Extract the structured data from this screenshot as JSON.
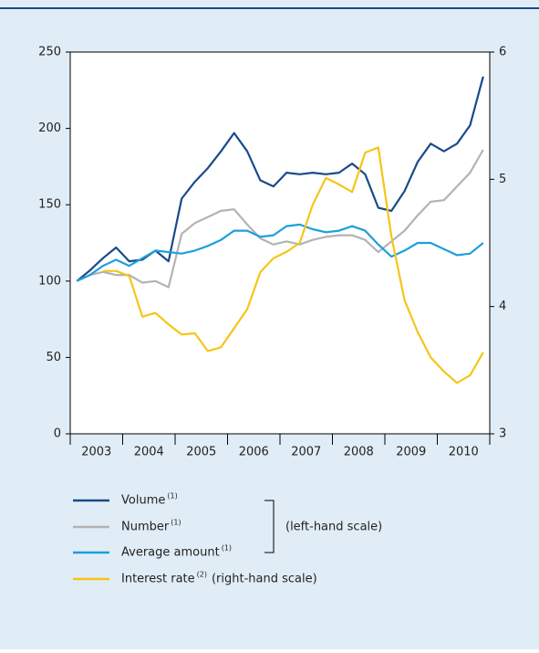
{
  "chart_data": {
    "type": "line",
    "categories": [
      null,
      null,
      null,
      null,
      null,
      null,
      null,
      null,
      null,
      null,
      null,
      null,
      null,
      null,
      null,
      null,
      null,
      null,
      null,
      null,
      null,
      null,
      null,
      null,
      null,
      null,
      null,
      null,
      null,
      null,
      null,
      null
    ],
    "year_labels": [
      "2003",
      "2004",
      "2005",
      "2006",
      "2007",
      "2008",
      "2009",
      "2010"
    ],
    "ylim": [
      0,
      250
    ],
    "yticks": [
      0,
      50,
      100,
      150,
      200,
      250
    ],
    "y2lim": [
      3,
      6
    ],
    "y2ticks": [
      3,
      4,
      5,
      6
    ],
    "legend_group_label": "(left-hand scale)",
    "series": [
      {
        "name": "Volume",
        "note": "(1)",
        "color": "#1a4a8a",
        "values": [
          100,
          107,
          115,
          122,
          113,
          114,
          120,
          113,
          154,
          165,
          174,
          185,
          197,
          185,
          166,
          162,
          171,
          170,
          171,
          170,
          171,
          177,
          170,
          148,
          146,
          159,
          178,
          190,
          185,
          190,
          202,
          234
        ]
      },
      {
        "name": "Number",
        "note": "(1)",
        "color": "#b3b3b3",
        "values": [
          100,
          104,
          106,
          104,
          104,
          99,
          100,
          96,
          131,
          138,
          142,
          146,
          147,
          137,
          128,
          124,
          126,
          124,
          127,
          129,
          130,
          130,
          127,
          119,
          126,
          133,
          143,
          152,
          153,
          162,
          171,
          186
        ]
      },
      {
        "name": "Average amount",
        "note": "(1)",
        "color": "#1ba0dc",
        "values": [
          100,
          104,
          110,
          114,
          110,
          115,
          120,
          119,
          118,
          120,
          123,
          127,
          133,
          133,
          129,
          130,
          136,
          137,
          134,
          132,
          133,
          136,
          133,
          124,
          116,
          120,
          125,
          125,
          121,
          117,
          118,
          125
        ]
      },
      {
        "name": "Interest rate",
        "note": "(2)",
        "scale_label": "(right-hand scale)",
        "color": "#f5c518",
        "axis": "y2",
        "values": [
          null,
          null,
          4.28,
          4.28,
          4.24,
          3.92,
          3.95,
          3.86,
          3.78,
          3.79,
          3.65,
          3.68,
          3.83,
          3.98,
          4.27,
          4.38,
          4.43,
          4.5,
          4.8,
          5.01,
          4.96,
          4.9,
          5.21,
          5.25,
          4.55,
          4.05,
          3.8,
          3.6,
          3.49,
          3.4,
          3.46,
          3.64
        ]
      }
    ]
  }
}
